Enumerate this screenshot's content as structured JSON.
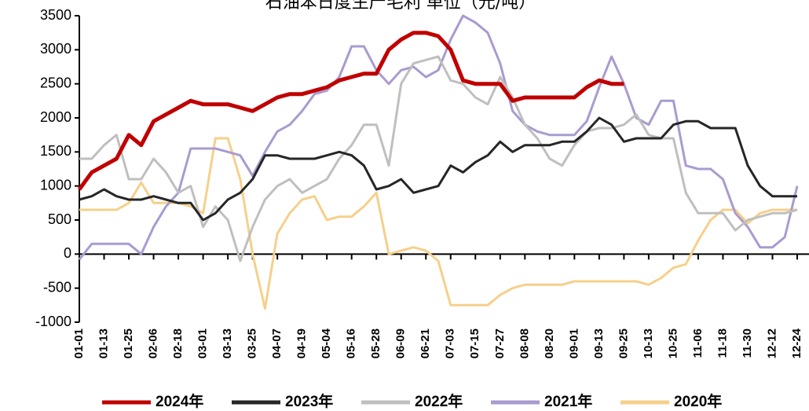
{
  "chart_data": {
    "type": "line",
    "title": "石油苯日度生产毛利 单位（元/吨）",
    "categories": [
      "01-01",
      null,
      "01-13",
      null,
      "01-25",
      null,
      "02-06",
      null,
      "02-18",
      null,
      "03-01",
      null,
      "03-13",
      null,
      "03-25",
      null,
      "04-07",
      null,
      "04-19",
      null,
      "05-04",
      null,
      "05-16",
      null,
      "05-28",
      null,
      "06-09",
      null,
      "06-21",
      null,
      "07-03",
      null,
      "07-15",
      null,
      "07-27",
      null,
      "08-08",
      null,
      "08-20",
      null,
      "09-01",
      null,
      "09-13",
      null,
      "09-25",
      null,
      "10-13",
      null,
      "10-25",
      null,
      "11-06",
      null,
      "11-18",
      null,
      "11-30",
      null,
      "12-12",
      null,
      "12-24"
    ],
    "series": [
      {
        "name": "2024年",
        "color": "#c00000",
        "width": 5,
        "values": [
          950,
          1200,
          1300,
          1400,
          1750,
          1600,
          1950,
          2050,
          2150,
          2250,
          2200,
          2200,
          2200,
          2150,
          2100,
          2200,
          2300,
          2350,
          2350,
          2400,
          2450,
          2550,
          2600,
          2650,
          2650,
          3000,
          3150,
          3250,
          3250,
          3200,
          3000,
          2550,
          2500,
          2500,
          2500,
          2250,
          2300,
          2300,
          2300,
          2300,
          2300,
          2450,
          2550,
          2500,
          2500,
          null,
          null,
          null,
          null,
          null,
          null,
          null,
          null,
          null,
          null,
          null,
          null,
          null,
          null
        ]
      },
      {
        "name": "2023年",
        "color": "#262626",
        "width": 3,
        "values": [
          800,
          850,
          950,
          850,
          800,
          800,
          850,
          800,
          750,
          750,
          500,
          600,
          800,
          900,
          1100,
          1450,
          1450,
          1400,
          1400,
          1400,
          1450,
          1500,
          1450,
          1300,
          950,
          1000,
          1100,
          900,
          950,
          1000,
          1300,
          1200,
          1350,
          1450,
          1650,
          1500,
          1600,
          1600,
          1600,
          1650,
          1650,
          1800,
          2000,
          1900,
          1650,
          1700,
          1700,
          1700,
          1900,
          1950,
          1950,
          1850,
          1850,
          1850,
          1300,
          1000,
          850,
          850,
          850
        ]
      },
      {
        "name": "2022年",
        "color": "#bfbfbf",
        "width": 3,
        "values": [
          1400,
          1400,
          1600,
          1750,
          1100,
          1100,
          1400,
          1200,
          900,
          1000,
          400,
          700,
          500,
          -100,
          400,
          800,
          1000,
          1100,
          900,
          1000,
          1100,
          1400,
          1600,
          1900,
          1900,
          1300,
          2500,
          2800,
          2850,
          2900,
          2550,
          2500,
          2300,
          2200,
          2600,
          2300,
          1900,
          1700,
          1400,
          1300,
          1600,
          1800,
          1850,
          1850,
          1900,
          2050,
          1750,
          1700,
          1700,
          900,
          600,
          600,
          600,
          350,
          500,
          550,
          600,
          600,
          650
        ]
      },
      {
        "name": "2021年",
        "color": "#a99bd0",
        "width": 3,
        "values": [
          -80,
          150,
          150,
          150,
          150,
          0,
          400,
          700,
          900,
          1550,
          1550,
          1550,
          1500,
          1450,
          1150,
          1500,
          1800,
          1900,
          2100,
          2350,
          2400,
          2600,
          3050,
          3050,
          2700,
          2500,
          2700,
          2750,
          2600,
          2700,
          3150,
          3500,
          3400,
          3250,
          2800,
          2100,
          1900,
          1800,
          1750,
          1750,
          1750,
          1950,
          2450,
          2900,
          2500,
          2000,
          1900,
          2250,
          2250,
          1300,
          1250,
          1250,
          1100,
          600,
          400,
          100,
          100,
          250,
          1000
        ]
      },
      {
        "name": "2020年",
        "color": "#f5d08b",
        "width": 3,
        "values": [
          650,
          650,
          650,
          650,
          750,
          1050,
          750,
          750,
          750,
          700,
          600,
          1700,
          1700,
          1100,
          0,
          -800,
          300,
          600,
          800,
          850,
          500,
          550,
          550,
          700,
          900,
          0,
          50,
          100,
          50,
          -100,
          -750,
          -750,
          -750,
          -750,
          -600,
          -500,
          -450,
          -450,
          -450,
          -450,
          -400,
          -400,
          -400,
          -400,
          -400,
          -400,
          -450,
          -350,
          -200,
          -150,
          200,
          500,
          650,
          650,
          450,
          600,
          650,
          650,
          650
        ]
      }
    ],
    "ylim": [
      -1000,
      3500
    ],
    "yticks": [
      -1000,
      -500,
      0,
      500,
      1000,
      1500,
      2000,
      2500,
      3000,
      3500
    ]
  }
}
